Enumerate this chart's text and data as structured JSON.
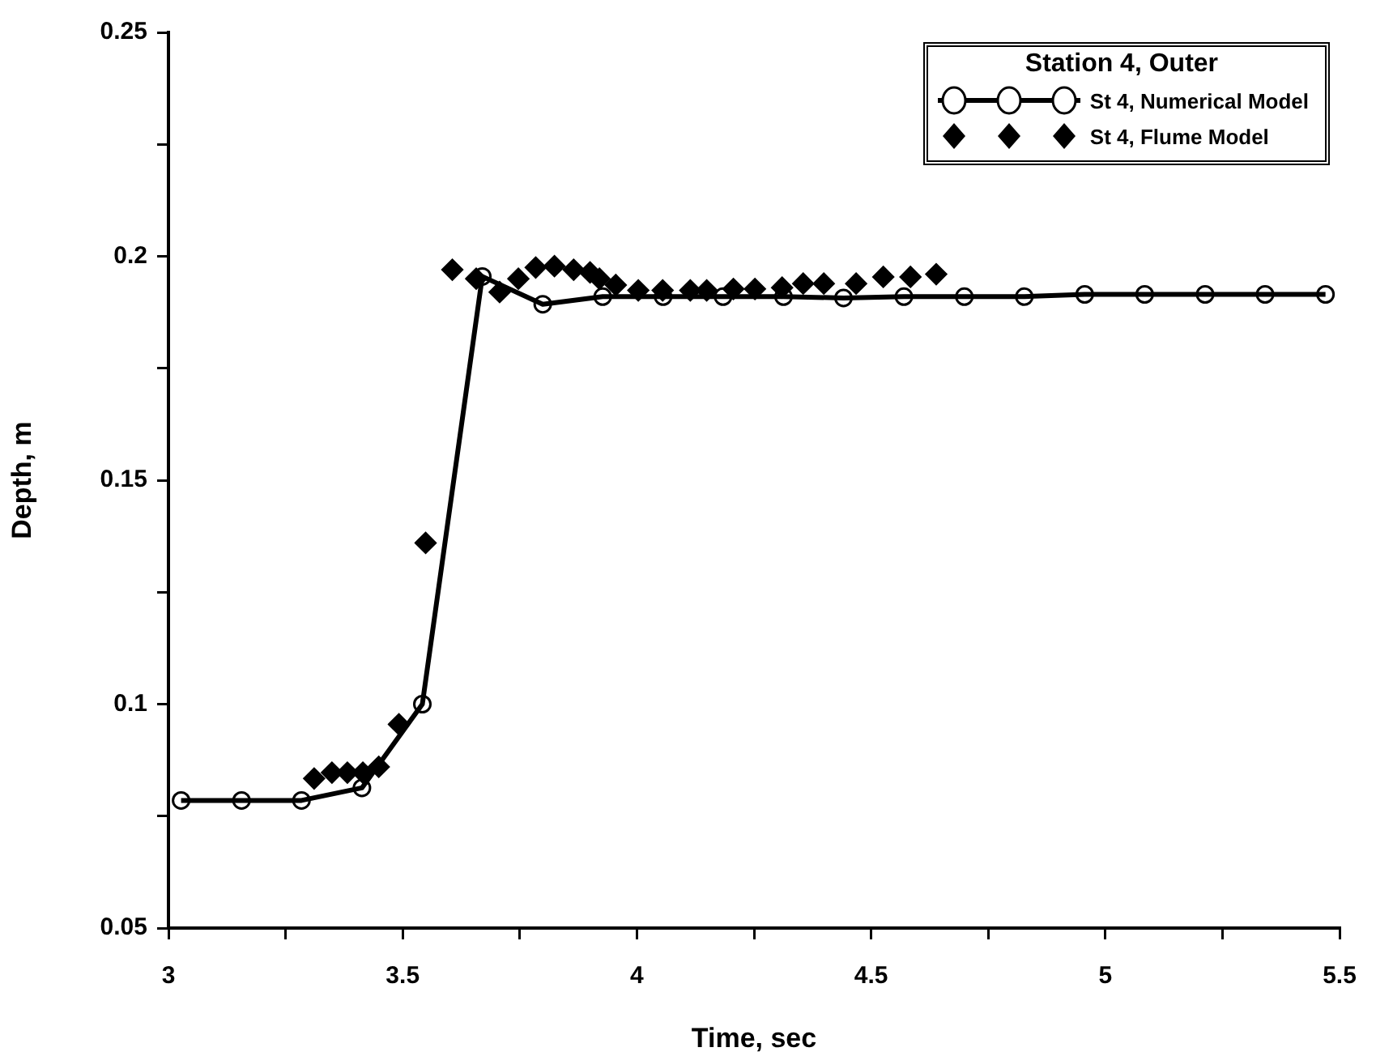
{
  "chart_data": {
    "type": "line",
    "xlabel": "Time, sec",
    "ylabel": "Depth, m",
    "legend_title": "Station 4, Outer",
    "legend": "top right",
    "grid": false,
    "xlim": [
      3,
      5.5
    ],
    "xticks": [
      3,
      {
        "value": 3.25,
        "label": null
      },
      3.5,
      {
        "value": 3.75,
        "label": null
      },
      4,
      {
        "value": 4.25,
        "label": null
      },
      4.5,
      {
        "value": 4.75,
        "label": null
      },
      5,
      {
        "value": 5.25,
        "label": null
      },
      5.5
    ],
    "ylim": [
      0.05,
      0.25
    ],
    "yticks": [
      0.05,
      {
        "value": 0.075,
        "label": null
      },
      0.1,
      {
        "value": 0.125,
        "label": null
      },
      0.15,
      {
        "value": 0.175,
        "label": null
      },
      0.2,
      {
        "value": 0.225,
        "label": null
      },
      0.25
    ],
    "series": [
      {
        "name": "St 4, Numerical Model",
        "type": "line",
        "color": "#000000",
        "marker": "circle",
        "line_style": "solid",
        "x": [
          3.027,
          3.156,
          3.284,
          3.413,
          3.542,
          3.67,
          3.799,
          3.927,
          4.056,
          4.184,
          4.313,
          4.441,
          4.57,
          4.699,
          4.827,
          4.956,
          5.084,
          5.213,
          5.341,
          5.47
        ],
        "values": [
          0.0785,
          0.0785,
          0.0785,
          0.0813,
          0.1,
          0.1955,
          0.1893,
          0.191,
          0.191,
          0.191,
          0.191,
          0.1907,
          0.191,
          0.191,
          0.191,
          0.1915,
          0.1915,
          0.1915,
          0.1915,
          0.1915
        ]
      },
      {
        "name": "St 4, Flume Model",
        "type": "scatter",
        "color": "#000000",
        "marker": "diamond",
        "x": [
          3.311,
          3.349,
          3.382,
          3.415,
          3.449,
          3.492,
          3.549,
          3.606,
          3.657,
          3.707,
          3.747,
          3.784,
          3.824,
          3.865,
          3.9,
          3.92,
          3.955,
          4.003,
          4.055,
          4.114,
          4.149,
          4.206,
          4.252,
          4.31,
          4.355,
          4.399,
          4.468,
          4.526,
          4.584,
          4.639
        ],
        "values": [
          0.0834,
          0.0847,
          0.0847,
          0.0847,
          0.086,
          0.0955,
          0.136,
          0.197,
          0.195,
          0.192,
          0.195,
          0.1975,
          0.1978,
          0.197,
          0.1964,
          0.195,
          0.1936,
          0.1924,
          0.1924,
          0.1924,
          0.1924,
          0.1927,
          0.1927,
          0.193,
          0.1939,
          0.1939,
          0.1939,
          0.1954,
          0.1954,
          0.196
        ]
      }
    ]
  }
}
